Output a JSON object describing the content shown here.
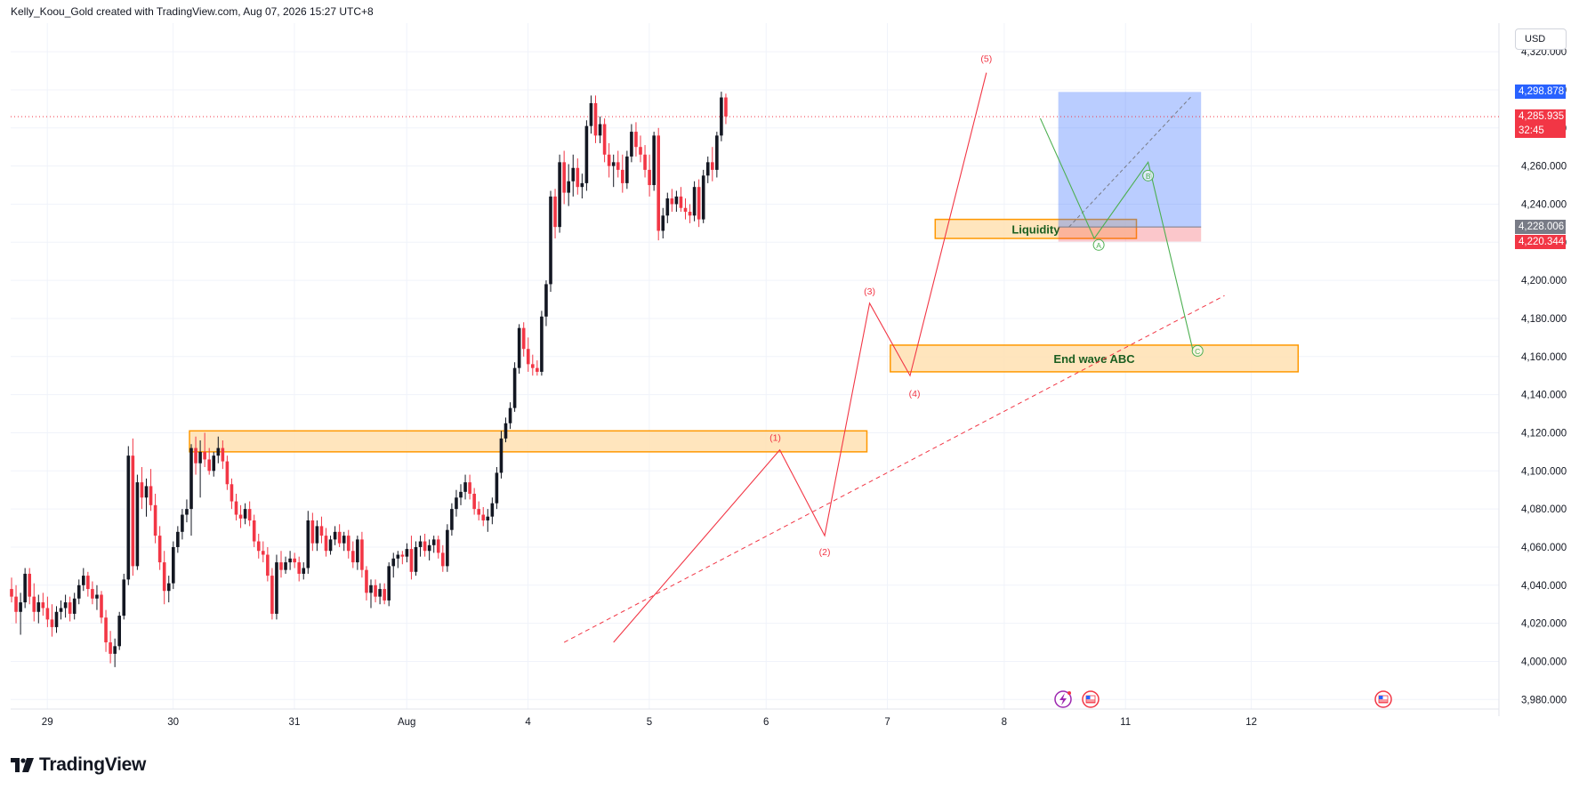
{
  "header": {
    "caption": "Kelly_Koou_Gold created with TradingView.com, Aug 07, 2026 15:27 UTC+8"
  },
  "currency_button": "USD",
  "brand": {
    "name": "TradingView"
  },
  "price_badges": {
    "target": {
      "value": "4,298.878",
      "color": "#2962ff"
    },
    "current": {
      "value": "4,285.935",
      "countdown": "32:45",
      "color": "#f23645"
    },
    "entry": {
      "value": "4,228.006",
      "color": "#787b86"
    },
    "stop": {
      "value": "4,220.344",
      "color": "#f23645"
    }
  },
  "colors": {
    "up": "#131722",
    "down": "#f23645",
    "zone_fill": "#ffe0b2",
    "zone_border": "#ff9800",
    "wave_line": "#f23645",
    "abc_line": "#4caf50",
    "profit_fill": "#2962ff",
    "loss_fill": "#f23645"
  },
  "chart_data": {
    "type": "candlestick",
    "ylim": [
      3975,
      4335
    ],
    "y_ticks": [
      "4,320.000",
      "4,300.000",
      "4,280.000",
      "4,260.000",
      "4,240.000",
      "4,220.000",
      "4,200.000",
      "4,180.000",
      "4,160.000",
      "4,140.000",
      "4,120.000",
      "4,100.000",
      "4,080.000",
      "4,060.000",
      "4,040.000",
      "4,020.000",
      "4,000.000",
      "3,980.000"
    ],
    "x_tick_labels": [
      "29",
      "30",
      "31",
      "Aug",
      "4",
      "5",
      "6",
      "7",
      "8",
      "11",
      "12"
    ],
    "current_price": 4285.935,
    "zones": [
      {
        "label": "",
        "price_top": 4121,
        "price_bottom": 4110,
        "bar_start": 40,
        "bar_end": 190
      },
      {
        "label": "Liquidity",
        "price_top": 4232,
        "price_bottom": 4222,
        "bar_start": 206,
        "bar_end": 250
      },
      {
        "label": "End wave ABC",
        "price_top": 4166,
        "price_bottom": 4152,
        "bar_start": 196,
        "bar_end": 286
      }
    ],
    "wave_labels": [
      {
        "label": "(1)",
        "bar": 170,
        "price": 4111
      },
      {
        "label": "(2)",
        "bar": 181,
        "price": 4067
      },
      {
        "label": "(3)",
        "bar": 191,
        "price": 4188
      },
      {
        "label": "(4)",
        "bar": 201,
        "price": 4150
      },
      {
        "label": "(5)",
        "bar": 217,
        "price": 4310
      }
    ],
    "abc_labels": [
      {
        "label": "A",
        "bar": 242,
        "price": 4227
      },
      {
        "label": "B",
        "bar": 253,
        "price": 4255
      },
      {
        "label": "C",
        "bar": 264,
        "price": 4163
      }
    ],
    "candles": [
      {
        "o": 4038,
        "h": 4044,
        "l": 4031,
        "c": 4034
      },
      {
        "o": 4034,
        "h": 4040,
        "l": 4020,
        "c": 4026
      },
      {
        "o": 4026,
        "h": 4036,
        "l": 4014,
        "c": 4031
      },
      {
        "o": 4031,
        "h": 4049,
        "l": 4028,
        "c": 4046
      },
      {
        "o": 4046,
        "h": 4049,
        "l": 4030,
        "c": 4034
      },
      {
        "o": 4034,
        "h": 4041,
        "l": 4021,
        "c": 4026
      },
      {
        "o": 4026,
        "h": 4035,
        "l": 4020,
        "c": 4031
      },
      {
        "o": 4031,
        "h": 4036,
        "l": 4024,
        "c": 4028
      },
      {
        "o": 4028,
        "h": 4034,
        "l": 4018,
        "c": 4022
      },
      {
        "o": 4022,
        "h": 4030,
        "l": 4013,
        "c": 4018
      },
      {
        "o": 4018,
        "h": 4029,
        "l": 4015,
        "c": 4026
      },
      {
        "o": 4026,
        "h": 4032,
        "l": 4022,
        "c": 4028
      },
      {
        "o": 4028,
        "h": 4035,
        "l": 4023,
        "c": 4031
      },
      {
        "o": 4031,
        "h": 4034,
        "l": 4021,
        "c": 4025
      },
      {
        "o": 4025,
        "h": 4036,
        "l": 4022,
        "c": 4033
      },
      {
        "o": 4033,
        "h": 4043,
        "l": 4030,
        "c": 4040
      },
      {
        "o": 4040,
        "h": 4049,
        "l": 4037,
        "c": 4045
      },
      {
        "o": 4045,
        "h": 4047,
        "l": 4034,
        "c": 4038
      },
      {
        "o": 4038,
        "h": 4042,
        "l": 4030,
        "c": 4033
      },
      {
        "o": 4033,
        "h": 4040,
        "l": 4027,
        "c": 4035
      },
      {
        "o": 4035,
        "h": 4037,
        "l": 4020,
        "c": 4023
      },
      {
        "o": 4023,
        "h": 4027,
        "l": 4005,
        "c": 4010
      },
      {
        "o": 4010,
        "h": 4016,
        "l": 3999,
        "c": 4004
      },
      {
        "o": 4004,
        "h": 4012,
        "l": 3997,
        "c": 4008
      },
      {
        "o": 4008,
        "h": 4026,
        "l": 4006,
        "c": 4024
      },
      {
        "o": 4024,
        "h": 4046,
        "l": 4022,
        "c": 4043
      },
      {
        "o": 4043,
        "h": 4113,
        "l": 4040,
        "c": 4108
      },
      {
        "o": 4108,
        "h": 4117,
        "l": 4045,
        "c": 4050
      },
      {
        "o": 4050,
        "h": 4098,
        "l": 4048,
        "c": 4094
      },
      {
        "o": 4094,
        "h": 4102,
        "l": 4080,
        "c": 4086
      },
      {
        "o": 4086,
        "h": 4096,
        "l": 4076,
        "c": 4092
      },
      {
        "o": 4092,
        "h": 4101,
        "l": 4079,
        "c": 4082
      },
      {
        "o": 4082,
        "h": 4088,
        "l": 4062,
        "c": 4066
      },
      {
        "o": 4066,
        "h": 4071,
        "l": 4048,
        "c": 4052
      },
      {
        "o": 4052,
        "h": 4058,
        "l": 4030,
        "c": 4037
      },
      {
        "o": 4037,
        "h": 4045,
        "l": 4031,
        "c": 4041
      },
      {
        "o": 4041,
        "h": 4063,
        "l": 4038,
        "c": 4060
      },
      {
        "o": 4060,
        "h": 4071,
        "l": 4057,
        "c": 4068
      },
      {
        "o": 4068,
        "h": 4080,
        "l": 4064,
        "c": 4077
      },
      {
        "o": 4077,
        "h": 4085,
        "l": 4073,
        "c": 4080
      },
      {
        "o": 4080,
        "h": 4114,
        "l": 4066,
        "c": 4112
      },
      {
        "o": 4112,
        "h": 4118,
        "l": 4098,
        "c": 4104
      },
      {
        "o": 4104,
        "h": 4116,
        "l": 4086,
        "c": 4110
      },
      {
        "o": 4110,
        "h": 4120,
        "l": 4102,
        "c": 4106
      },
      {
        "o": 4106,
        "h": 4112,
        "l": 4098,
        "c": 4100
      },
      {
        "o": 4100,
        "h": 4110,
        "l": 4097,
        "c": 4108
      },
      {
        "o": 4108,
        "h": 4118,
        "l": 4104,
        "c": 4112
      },
      {
        "o": 4112,
        "h": 4116,
        "l": 4101,
        "c": 4105
      },
      {
        "o": 4105,
        "h": 4108,
        "l": 4090,
        "c": 4093
      },
      {
        "o": 4093,
        "h": 4096,
        "l": 4080,
        "c": 4084
      },
      {
        "o": 4084,
        "h": 4088,
        "l": 4074,
        "c": 4077
      },
      {
        "o": 4077,
        "h": 4082,
        "l": 4070,
        "c": 4075
      },
      {
        "o": 4075,
        "h": 4083,
        "l": 4072,
        "c": 4080
      },
      {
        "o": 4080,
        "h": 4084,
        "l": 4071,
        "c": 4074
      },
      {
        "o": 4074,
        "h": 4077,
        "l": 4060,
        "c": 4063
      },
      {
        "o": 4063,
        "h": 4067,
        "l": 4054,
        "c": 4058
      },
      {
        "o": 4058,
        "h": 4063,
        "l": 4052,
        "c": 4056
      },
      {
        "o": 4056,
        "h": 4060,
        "l": 4042,
        "c": 4045
      },
      {
        "o": 4045,
        "h": 4049,
        "l": 4022,
        "c": 4025
      },
      {
        "o": 4025,
        "h": 4056,
        "l": 4022,
        "c": 4052
      },
      {
        "o": 4052,
        "h": 4058,
        "l": 4044,
        "c": 4048
      },
      {
        "o": 4048,
        "h": 4055,
        "l": 4046,
        "c": 4052
      },
      {
        "o": 4052,
        "h": 4058,
        "l": 4048,
        "c": 4054
      },
      {
        "o": 4054,
        "h": 4057,
        "l": 4049,
        "c": 4052
      },
      {
        "o": 4052,
        "h": 4055,
        "l": 4042,
        "c": 4046
      },
      {
        "o": 4046,
        "h": 4052,
        "l": 4043,
        "c": 4049
      },
      {
        "o": 4049,
        "h": 4079,
        "l": 4046,
        "c": 4074
      },
      {
        "o": 4074,
        "h": 4078,
        "l": 4058,
        "c": 4062
      },
      {
        "o": 4062,
        "h": 4074,
        "l": 4058,
        "c": 4071
      },
      {
        "o": 4071,
        "h": 4076,
        "l": 4062,
        "c": 4066
      },
      {
        "o": 4066,
        "h": 4070,
        "l": 4055,
        "c": 4058
      },
      {
        "o": 4058,
        "h": 4066,
        "l": 4056,
        "c": 4064
      },
      {
        "o": 4064,
        "h": 4071,
        "l": 4061,
        "c": 4068
      },
      {
        "o": 4068,
        "h": 4072,
        "l": 4060,
        "c": 4062
      },
      {
        "o": 4062,
        "h": 4068,
        "l": 4058,
        "c": 4066
      },
      {
        "o": 4066,
        "h": 4069,
        "l": 4054,
        "c": 4058
      },
      {
        "o": 4058,
        "h": 4063,
        "l": 4049,
        "c": 4052
      },
      {
        "o": 4052,
        "h": 4066,
        "l": 4048,
        "c": 4064
      },
      {
        "o": 4064,
        "h": 4068,
        "l": 4044,
        "c": 4048
      },
      {
        "o": 4048,
        "h": 4050,
        "l": 4032,
        "c": 4036
      },
      {
        "o": 4036,
        "h": 4043,
        "l": 4028,
        "c": 4040
      },
      {
        "o": 4040,
        "h": 4043,
        "l": 4031,
        "c": 4034
      },
      {
        "o": 4034,
        "h": 4041,
        "l": 4030,
        "c": 4038
      },
      {
        "o": 4038,
        "h": 4041,
        "l": 4030,
        "c": 4032
      },
      {
        "o": 4032,
        "h": 4052,
        "l": 4029,
        "c": 4050
      },
      {
        "o": 4050,
        "h": 4057,
        "l": 4044,
        "c": 4054
      },
      {
        "o": 4054,
        "h": 4058,
        "l": 4049,
        "c": 4056
      },
      {
        "o": 4056,
        "h": 4058,
        "l": 4051,
        "c": 4055
      },
      {
        "o": 4055,
        "h": 4062,
        "l": 4052,
        "c": 4059
      },
      {
        "o": 4059,
        "h": 4066,
        "l": 4043,
        "c": 4047
      },
      {
        "o": 4047,
        "h": 4063,
        "l": 4045,
        "c": 4060
      },
      {
        "o": 4060,
        "h": 4066,
        "l": 4055,
        "c": 4063
      },
      {
        "o": 4063,
        "h": 4067,
        "l": 4055,
        "c": 4058
      },
      {
        "o": 4058,
        "h": 4064,
        "l": 4053,
        "c": 4061
      },
      {
        "o": 4061,
        "h": 4066,
        "l": 4057,
        "c": 4064
      },
      {
        "o": 4064,
        "h": 4066,
        "l": 4054,
        "c": 4057
      },
      {
        "o": 4057,
        "h": 4061,
        "l": 4047,
        "c": 4050
      },
      {
        "o": 4050,
        "h": 4072,
        "l": 4047,
        "c": 4069
      },
      {
        "o": 4069,
        "h": 4083,
        "l": 4066,
        "c": 4080
      },
      {
        "o": 4080,
        "h": 4090,
        "l": 4076,
        "c": 4086
      },
      {
        "o": 4086,
        "h": 4093,
        "l": 4082,
        "c": 4089
      },
      {
        "o": 4089,
        "h": 4098,
        "l": 4085,
        "c": 4094
      },
      {
        "o": 4094,
        "h": 4098,
        "l": 4085,
        "c": 4088
      },
      {
        "o": 4088,
        "h": 4091,
        "l": 4077,
        "c": 4080
      },
      {
        "o": 4080,
        "h": 4084,
        "l": 4074,
        "c": 4077
      },
      {
        "o": 4077,
        "h": 4081,
        "l": 4071,
        "c": 4074
      },
      {
        "o": 4074,
        "h": 4080,
        "l": 4068,
        "c": 4076
      },
      {
        "o": 4076,
        "h": 4086,
        "l": 4072,
        "c": 4083
      },
      {
        "o": 4083,
        "h": 4102,
        "l": 4080,
        "c": 4099
      },
      {
        "o": 4099,
        "h": 4121,
        "l": 4096,
        "c": 4117
      },
      {
        "o": 4117,
        "h": 4128,
        "l": 4115,
        "c": 4125
      },
      {
        "o": 4125,
        "h": 4136,
        "l": 4122,
        "c": 4133
      },
      {
        "o": 4133,
        "h": 4157,
        "l": 4131,
        "c": 4154
      },
      {
        "o": 4154,
        "h": 4177,
        "l": 4151,
        "c": 4175
      },
      {
        "o": 4175,
        "h": 4178,
        "l": 4160,
        "c": 4164
      },
      {
        "o": 4164,
        "h": 4170,
        "l": 4152,
        "c": 4156
      },
      {
        "o": 4156,
        "h": 4161,
        "l": 4150,
        "c": 4154
      },
      {
        "o": 4154,
        "h": 4158,
        "l": 4150,
        "c": 4152
      },
      {
        "o": 4152,
        "h": 4184,
        "l": 4150,
        "c": 4181
      },
      {
        "o": 4181,
        "h": 4200,
        "l": 4176,
        "c": 4198
      },
      {
        "o": 4198,
        "h": 4247,
        "l": 4194,
        "c": 4244
      },
      {
        "o": 4244,
        "h": 4248,
        "l": 4222,
        "c": 4228
      },
      {
        "o": 4228,
        "h": 4266,
        "l": 4225,
        "c": 4262
      },
      {
        "o": 4262,
        "h": 4268,
        "l": 4240,
        "c": 4246
      },
      {
        "o": 4246,
        "h": 4261,
        "l": 4239,
        "c": 4252
      },
      {
        "o": 4252,
        "h": 4266,
        "l": 4244,
        "c": 4259
      },
      {
        "o": 4259,
        "h": 4264,
        "l": 4245,
        "c": 4249
      },
      {
        "o": 4249,
        "h": 4256,
        "l": 4243,
        "c": 4251
      },
      {
        "o": 4251,
        "h": 4284,
        "l": 4247,
        "c": 4281
      },
      {
        "o": 4281,
        "h": 4297,
        "l": 4277,
        "c": 4293
      },
      {
        "o": 4293,
        "h": 4297,
        "l": 4272,
        "c": 4276
      },
      {
        "o": 4276,
        "h": 4286,
        "l": 4272,
        "c": 4282
      },
      {
        "o": 4282,
        "h": 4285,
        "l": 4262,
        "c": 4266
      },
      {
        "o": 4266,
        "h": 4272,
        "l": 4254,
        "c": 4260
      },
      {
        "o": 4260,
        "h": 4266,
        "l": 4249,
        "c": 4262
      },
      {
        "o": 4262,
        "h": 4268,
        "l": 4254,
        "c": 4258
      },
      {
        "o": 4258,
        "h": 4266,
        "l": 4246,
        "c": 4251
      },
      {
        "o": 4251,
        "h": 4268,
        "l": 4248,
        "c": 4265
      },
      {
        "o": 4265,
        "h": 4282,
        "l": 4262,
        "c": 4278
      },
      {
        "o": 4278,
        "h": 4283,
        "l": 4265,
        "c": 4270
      },
      {
        "o": 4270,
        "h": 4276,
        "l": 4262,
        "c": 4266
      },
      {
        "o": 4266,
        "h": 4271,
        "l": 4254,
        "c": 4258
      },
      {
        "o": 4258,
        "h": 4266,
        "l": 4244,
        "c": 4250
      },
      {
        "o": 4250,
        "h": 4278,
        "l": 4247,
        "c": 4276
      },
      {
        "o": 4276,
        "h": 4280,
        "l": 4221,
        "c": 4226
      },
      {
        "o": 4226,
        "h": 4238,
        "l": 4222,
        "c": 4234
      },
      {
        "o": 4234,
        "h": 4246,
        "l": 4230,
        "c": 4243
      },
      {
        "o": 4243,
        "h": 4248,
        "l": 4236,
        "c": 4240
      },
      {
        "o": 4240,
        "h": 4247,
        "l": 4236,
        "c": 4244
      },
      {
        "o": 4244,
        "h": 4249,
        "l": 4236,
        "c": 4238
      },
      {
        "o": 4238,
        "h": 4243,
        "l": 4232,
        "c": 4236
      },
      {
        "o": 4236,
        "h": 4240,
        "l": 4230,
        "c": 4234
      },
      {
        "o": 4234,
        "h": 4252,
        "l": 4231,
        "c": 4249
      },
      {
        "o": 4249,
        "h": 4253,
        "l": 4228,
        "c": 4232
      },
      {
        "o": 4232,
        "h": 4258,
        "l": 4230,
        "c": 4255
      },
      {
        "o": 4255,
        "h": 4265,
        "l": 4251,
        "c": 4262
      },
      {
        "o": 4262,
        "h": 4270,
        "l": 4252,
        "c": 4258
      },
      {
        "o": 4258,
        "h": 4278,
        "l": 4254,
        "c": 4276
      },
      {
        "o": 4276,
        "h": 4299,
        "l": 4273,
        "c": 4296
      },
      {
        "o": 4296,
        "h": 4298,
        "l": 4282,
        "c": 4286
      }
    ]
  }
}
